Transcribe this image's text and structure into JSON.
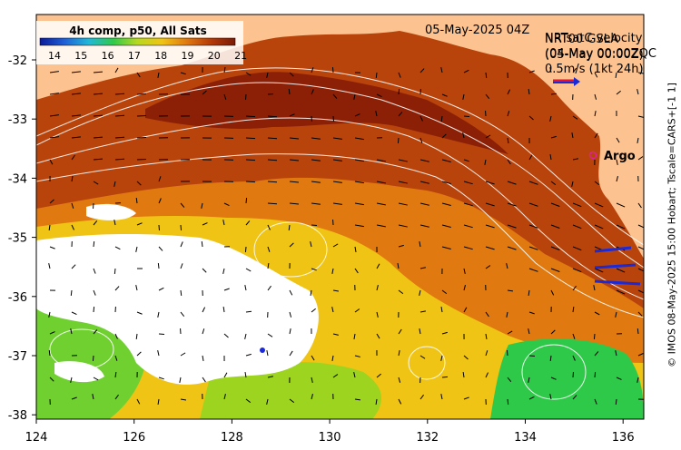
{
  "title_datetime": "05-May-2025 04Z",
  "composite_label": "4h comp, p50, All Sats",
  "colorbar_ticks": [
    "14",
    "15",
    "16",
    "17",
    "18",
    "19",
    "20",
    "21"
  ],
  "colorbar_colors": [
    "#0a1a9a",
    "#1f5fd6",
    "#22b8d8",
    "#2fc94a",
    "#b8d820",
    "#f0c414",
    "#e07a10",
    "#b53a08",
    "#7a1a06"
  ],
  "overlay_lines": [
    "NRT00 GSLA",
    "(05-May 00:00Z)"
  ],
  "overlay_lines_back": [
    "NRTsatC velocity",
    "(04-May 00:00ZQC"
  ],
  "scale_text": "0.5m/s (1kt 24h)",
  "argo_label": "Argo",
  "credit": "© IMOS 08-May-2025 15:00 Hobart; Tscale=CARS+[-1 1]",
  "x_ticks": [
    "124",
    "126",
    "128",
    "130",
    "132",
    "134",
    "136"
  ],
  "y_ticks": [
    "-32",
    "-33",
    "-34",
    "-35",
    "-36",
    "-37",
    "-38"
  ],
  "colors": {
    "land": "#fcc28f",
    "cloud": "#ffffff",
    "contour": "#ffffff",
    "argo": "#e0209c",
    "ship": "#1a2ad8"
  }
}
